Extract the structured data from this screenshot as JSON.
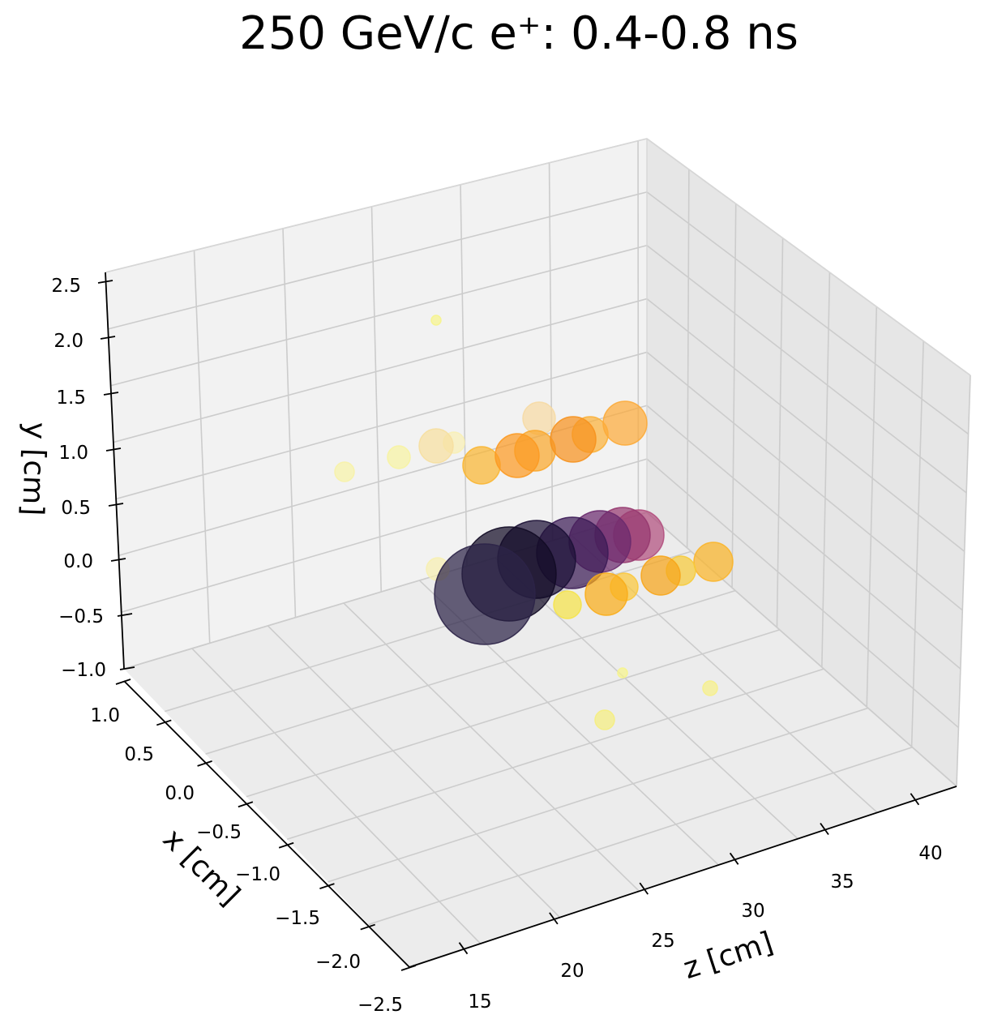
{
  "chart_data": {
    "type": "scatter3d",
    "title": "250 GeV/c e⁺: 0.4-0.8 ns",
    "xlabel": "z [cm]",
    "ylabel": "x [cm]",
    "zlabel": "y [cm]",
    "z_ticks": [
      "15",
      "20",
      "25",
      "30",
      "35",
      "40"
    ],
    "x_ticks": [
      "1.0",
      "0.5",
      "0.0",
      "−0.5",
      "−1.0",
      "−1.5",
      "−2.0",
      "−2.5"
    ],
    "y_ticks": [
      "2.5",
      "2.0",
      "1.5",
      "1.0",
      "0.5",
      "0.0",
      "−0.5",
      "−1.0"
    ],
    "colormap": "inferno",
    "grid": true,
    "points": [
      {
        "cx": 538,
        "cy": 395,
        "r": 6,
        "color": "#f6f48c"
      },
      {
        "cx": 425,
        "cy": 582,
        "r": 12,
        "color": "#f7f2a8"
      },
      {
        "cx": 492,
        "cy": 564,
        "r": 14,
        "color": "#f7f3a2"
      },
      {
        "cx": 560,
        "cy": 546,
        "r": 13,
        "color": "#f8efb4"
      },
      {
        "cx": 538,
        "cy": 550,
        "r": 21,
        "color": "#f6dfa0"
      },
      {
        "cx": 665,
        "cy": 516,
        "r": 20,
        "color": "#f6daa4"
      },
      {
        "cx": 594,
        "cy": 574,
        "r": 23,
        "color": "#f9b632"
      },
      {
        "cx": 660,
        "cy": 556,
        "r": 25,
        "color": "#faa72c"
      },
      {
        "cx": 638,
        "cy": 562,
        "r": 27,
        "color": "#fc9a22"
      },
      {
        "cx": 728,
        "cy": 536,
        "r": 22,
        "color": "#fbb13a"
      },
      {
        "cx": 707,
        "cy": 542,
        "r": 28,
        "color": "#f6921e"
      },
      {
        "cx": 771,
        "cy": 522,
        "r": 27,
        "color": "#fcab3a"
      },
      {
        "cx": 540,
        "cy": 702,
        "r": 14,
        "color": "#f7efb0"
      },
      {
        "cx": 788,
        "cy": 660,
        "r": 31,
        "color": "#b24f7e"
      },
      {
        "cx": 768,
        "cy": 660,
        "r": 34,
        "color": "#96386f"
      },
      {
        "cx": 740,
        "cy": 668,
        "r": 38,
        "color": "#6a2a6e"
      },
      {
        "cx": 706,
        "cy": 682,
        "r": 44,
        "color": "#3c1c56"
      },
      {
        "cx": 662,
        "cy": 690,
        "r": 48,
        "color": "#1c1136"
      },
      {
        "cx": 628,
        "cy": 708,
        "r": 58,
        "color": "#120b25"
      },
      {
        "cx": 598,
        "cy": 733,
        "r": 62,
        "color": "#2c2448"
      },
      {
        "cx": 880,
        "cy": 693,
        "r": 24,
        "color": "#fbb52a"
      },
      {
        "cx": 840,
        "cy": 704,
        "r": 18,
        "color": "#f6cb3a"
      },
      {
        "cx": 815,
        "cy": 710,
        "r": 24,
        "color": "#f7a51a"
      },
      {
        "cx": 770,
        "cy": 724,
        "r": 17,
        "color": "#fbc83c"
      },
      {
        "cx": 748,
        "cy": 733,
        "r": 26,
        "color": "#f9ad1a"
      },
      {
        "cx": 700,
        "cy": 746,
        "r": 17,
        "color": "#f5e34a"
      },
      {
        "cx": 768,
        "cy": 830,
        "r": 6,
        "color": "#f6f48c"
      },
      {
        "cx": 876,
        "cy": 849,
        "r": 9,
        "color": "#f6f088"
      },
      {
        "cx": 746,
        "cy": 888,
        "r": 12,
        "color": "#f5ee80"
      }
    ]
  }
}
